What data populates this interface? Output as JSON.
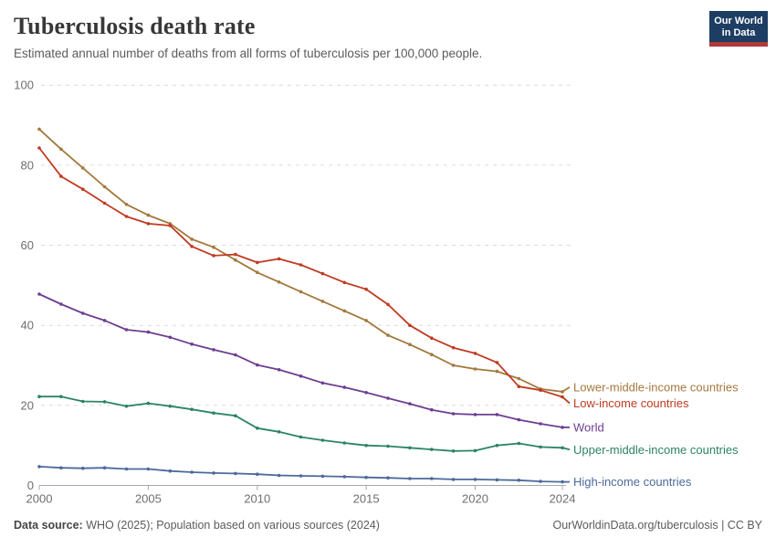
{
  "header": {
    "title": "Tuberculosis death rate",
    "subtitle": "Estimated annual number of deaths from all forms of tuberculosis per 100,000 people.",
    "logo": {
      "line1": "Our World",
      "line2": "in Data",
      "bg_color": "#1d3d63",
      "accent_color": "#b0393b"
    }
  },
  "footer": {
    "source_label": "Data source:",
    "source_text": " WHO (2025); Population based on various sources (2024)",
    "license_text": "OurWorldinData.org/tuberculosis | CC BY"
  },
  "chart_data": {
    "type": "line",
    "title": "Tuberculosis death rate",
    "xlabel": "",
    "ylabel": "",
    "x": [
      2000,
      2001,
      2002,
      2003,
      2004,
      2005,
      2006,
      2007,
      2008,
      2009,
      2010,
      2011,
      2012,
      2013,
      2014,
      2015,
      2016,
      2017,
      2018,
      2019,
      2020,
      2021,
      2022,
      2023,
      2024
    ],
    "xticks": [
      2000,
      2005,
      2010,
      2015,
      2020,
      2024
    ],
    "yticks": [
      0,
      20,
      40,
      60,
      80,
      100
    ],
    "ylim": [
      0,
      100
    ],
    "xlim": [
      2000,
      2024
    ],
    "grid": "horizontal-dashed",
    "legend_position": "right-of-line-ends",
    "marker": "dot",
    "series": [
      {
        "name": "Lower-middle-income countries",
        "slug": "lower-middle-income",
        "color": "#a2793d",
        "label_dy": -5,
        "values": [
          89,
          84,
          79.3,
          74.6,
          70.2,
          67.5,
          65.4,
          61.5,
          59.5,
          56.3,
          53.2,
          50.8,
          48.4,
          46,
          43.6,
          41.2,
          37.5,
          35.2,
          32.7,
          30,
          29.1,
          28.5,
          26.7,
          24.1,
          23.4
        ]
      },
      {
        "name": "Low-income countries",
        "slug": "low-income",
        "color": "#bf3b22",
        "label_dy": 7,
        "values": [
          84.3,
          77.2,
          74,
          70.5,
          67.2,
          65.4,
          64.9,
          59.7,
          57.4,
          57.7,
          55.7,
          56.6,
          55.1,
          52.9,
          50.7,
          49,
          45.2,
          40,
          36.8,
          34.4,
          33,
          30.7,
          24.7,
          23.8,
          22.1
        ]
      },
      {
        "name": "World",
        "slug": "world",
        "color": "#6d3e91",
        "label_dy": 0,
        "values": [
          47.8,
          45.3,
          43,
          41.2,
          38.9,
          38.3,
          37,
          35.3,
          33.9,
          32.6,
          30.1,
          28.9,
          27.3,
          25.6,
          24.5,
          23.2,
          21.8,
          20.4,
          18.9,
          17.9,
          17.7,
          17.7,
          16.4,
          15.4,
          14.5
        ]
      },
      {
        "name": "Upper-middle-income countries",
        "slug": "upper-middle-income",
        "color": "#2c8465",
        "label_dy": 2,
        "values": [
          22.2,
          22.2,
          21,
          20.9,
          19.8,
          20.5,
          19.8,
          19,
          18.1,
          17.4,
          14.3,
          13.4,
          12.1,
          11.3,
          10.6,
          10,
          9.8,
          9.4,
          9,
          8.6,
          8.7,
          10,
          10.5,
          9.6,
          9.4
        ]
      },
      {
        "name": "High-income countries",
        "slug": "high-income",
        "color": "#4c6a9c",
        "label_dy": 0,
        "values": [
          4.7,
          4.4,
          4.3,
          4.4,
          4.1,
          4.1,
          3.6,
          3.3,
          3.1,
          3,
          2.8,
          2.5,
          2.4,
          2.3,
          2.2,
          2,
          1.9,
          1.7,
          1.7,
          1.5,
          1.5,
          1.4,
          1.3,
          1,
          0.9
        ]
      }
    ],
    "axis_color": "#a8a8a8",
    "grid_color": "#dcdcdc",
    "tick_label_color": "#6e6e6e"
  }
}
